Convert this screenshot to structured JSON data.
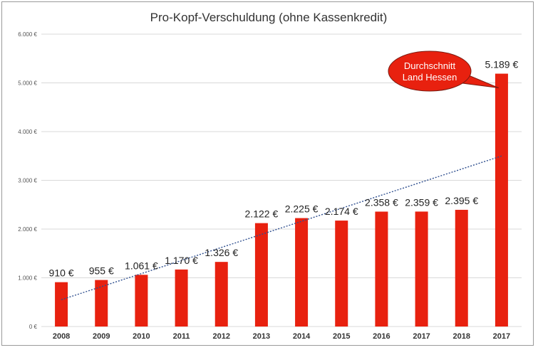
{
  "chart_data": {
    "type": "bar",
    "title": "Pro-Kopf-Verschuldung (ohne Kassenkredit)",
    "xlabel": "",
    "ylabel": "",
    "categories": [
      "2008",
      "2009",
      "2010",
      "2011",
      "2012",
      "2013",
      "2014",
      "2015",
      "2016",
      "2017",
      "2018",
      "2017"
    ],
    "values": [
      910,
      955,
      1061,
      1170,
      1326,
      2122,
      2225,
      2174,
      2358,
      2359,
      2395,
      5189
    ],
    "data_labels": [
      "910 €",
      "955 €",
      "1.061 €",
      "1.170 €",
      "1.326 €",
      "2.122 €",
      "2.225 €",
      "2.174 €",
      "2.358 €",
      "2.359 €",
      "2.395 €",
      "5.189 €"
    ],
    "ylim": [
      0,
      6000
    ],
    "yticks": [
      0,
      1000,
      2000,
      3000,
      4000,
      5000,
      6000
    ],
    "ytick_labels": [
      "0 €",
      "1.000 €",
      "2.000 €",
      "3.000 €",
      "4.000 €",
      "5.000 €",
      "6.000 €"
    ],
    "bar_color": "#e8210f",
    "trendline": {
      "style": "dotted",
      "color": "#2f4f8f",
      "from_value": 550,
      "to_value": 3500
    },
    "emphasized_category_index": 11,
    "grid": true,
    "callout": {
      "text_lines": [
        "Durchschnitt",
        "Land Hessen"
      ],
      "color": "#e8210f",
      "points_to_category_index": 11
    }
  }
}
